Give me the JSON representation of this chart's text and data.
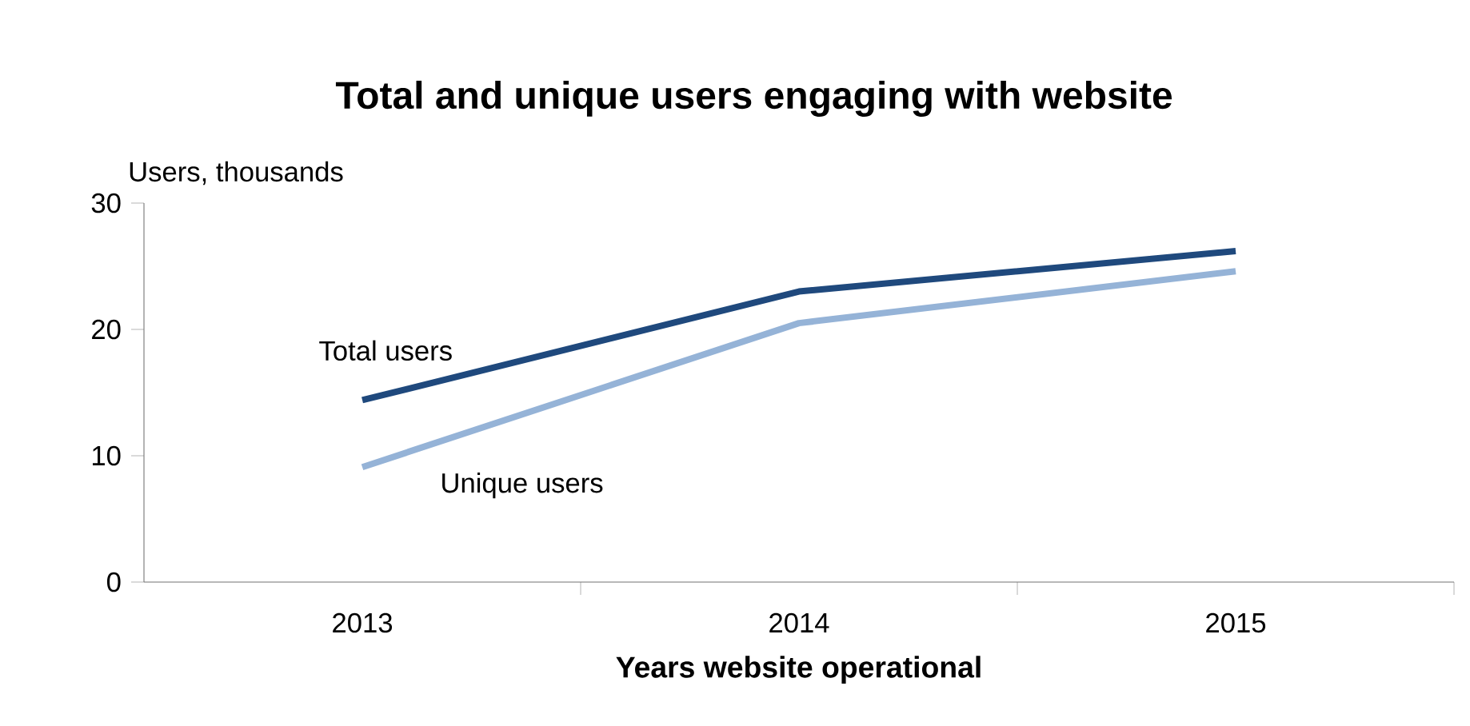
{
  "chart_data": {
    "type": "line",
    "title": "Total and unique users engaging with website",
    "xlabel": "Years website operational",
    "ylabel": "Users, thousands",
    "categories": [
      "2013",
      "2014",
      "2015"
    ],
    "series": [
      {
        "name": "Total users",
        "color": "#1f497d",
        "values": [
          14.4,
          23.0,
          26.2
        ]
      },
      {
        "name": "Unique users",
        "color": "#95b3d7",
        "values": [
          9.1,
          20.5,
          24.6
        ]
      }
    ],
    "ylim": [
      0,
      30
    ],
    "yticks": [
      0,
      10,
      20,
      30
    ],
    "grid": false,
    "legend": false,
    "marker": "none",
    "line_style": "solid"
  }
}
